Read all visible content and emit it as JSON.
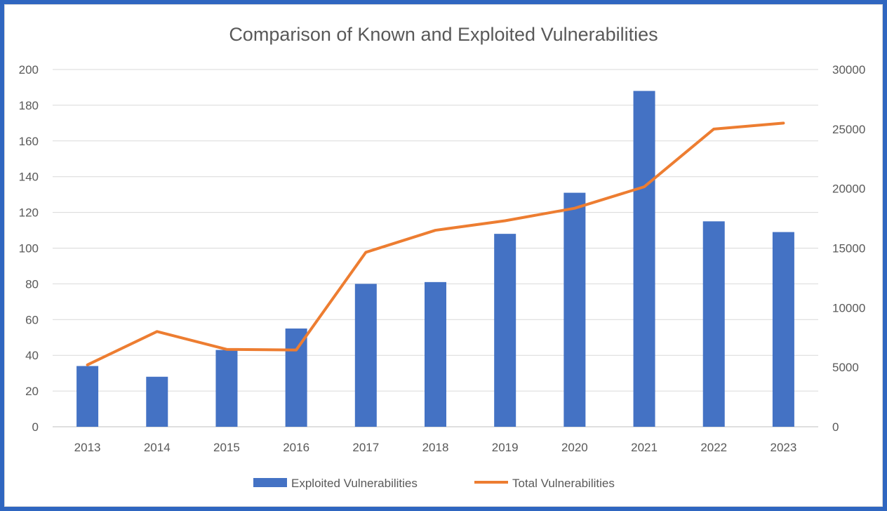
{
  "chart_data": {
    "type": "bar",
    "title": "Comparison of Known and Exploited Vulnerabilities",
    "categories": [
      "2013",
      "2014",
      "2015",
      "2016",
      "2017",
      "2018",
      "2019",
      "2020",
      "2021",
      "2022",
      "2023"
    ],
    "series": [
      {
        "name": "Exploited Vulnerabilities",
        "type": "bar",
        "axis": "left",
        "color": "#4472c4",
        "values": [
          34,
          28,
          43,
          55,
          80,
          81,
          108,
          131,
          188,
          115,
          109
        ]
      },
      {
        "name": "Total Vulnerabilities",
        "type": "line",
        "axis": "right",
        "color": "#ed7d31",
        "values": [
          5200,
          8000,
          6500,
          6450,
          14650,
          16500,
          17300,
          18350,
          20150,
          25000,
          25500
        ]
      }
    ],
    "y_left": {
      "ylim": [
        0,
        200
      ],
      "ticks": [
        "0",
        "20",
        "40",
        "60",
        "80",
        "100",
        "120",
        "140",
        "160",
        "180",
        "200"
      ]
    },
    "y_right": {
      "ylim": [
        0,
        30000
      ],
      "ticks": [
        "0",
        "5000",
        "10000",
        "15000",
        "20000",
        "25000",
        "30000"
      ]
    },
    "xlabel": "",
    "ylabel": "",
    "grid": true,
    "legend": "bottom"
  }
}
